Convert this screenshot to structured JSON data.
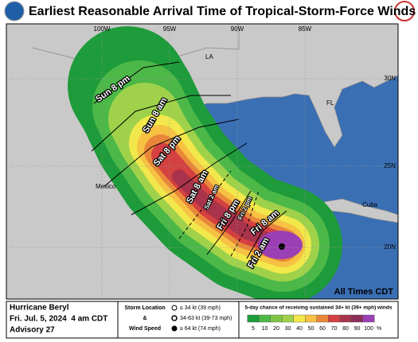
{
  "header": {
    "title": "Earliest Reasonable Arrival Time of Tropical-Storm-Force Winds"
  },
  "map": {
    "longitude_labels": [
      "100W",
      "95W",
      "90W",
      "85W"
    ],
    "latitude_labels": [
      "30N",
      "25N",
      "20N"
    ],
    "place_labels": [
      "LA",
      "FL",
      "Mexico",
      "Cuba"
    ],
    "arrival_labels": [
      "Sun 8 pm",
      "Sun 8 am",
      "Sat 8 pm",
      "Sat 8 am",
      "Sat 2 am",
      "Fri 8 pm",
      "Fri 2 pm",
      "Fri 8 am",
      "Fri 2 am"
    ],
    "times_note": "All Times CDT"
  },
  "footer": {
    "storm": "Hurricane Beryl",
    "date": "Fri. Jul. 5, 2024  4 am CDT",
    "advisory": "Advisory 27",
    "key_title_1": "Storm Location",
    "key_title_2": "&",
    "key_title_3": "Wind Speed",
    "key_items": [
      "≤ 34 kt (39 mph)",
      "34-63 kt (39-73 mph)",
      "≥ 64 kt (74 mph)"
    ],
    "legend_title": "5-day chance of receiving sustained 34+ kt (39+ mph) winds",
    "legend_labels": [
      "5",
      "10",
      "20",
      "30",
      "40",
      "50",
      "60",
      "70",
      "80",
      "90",
      "100"
    ],
    "legend_unit": "%"
  }
}
